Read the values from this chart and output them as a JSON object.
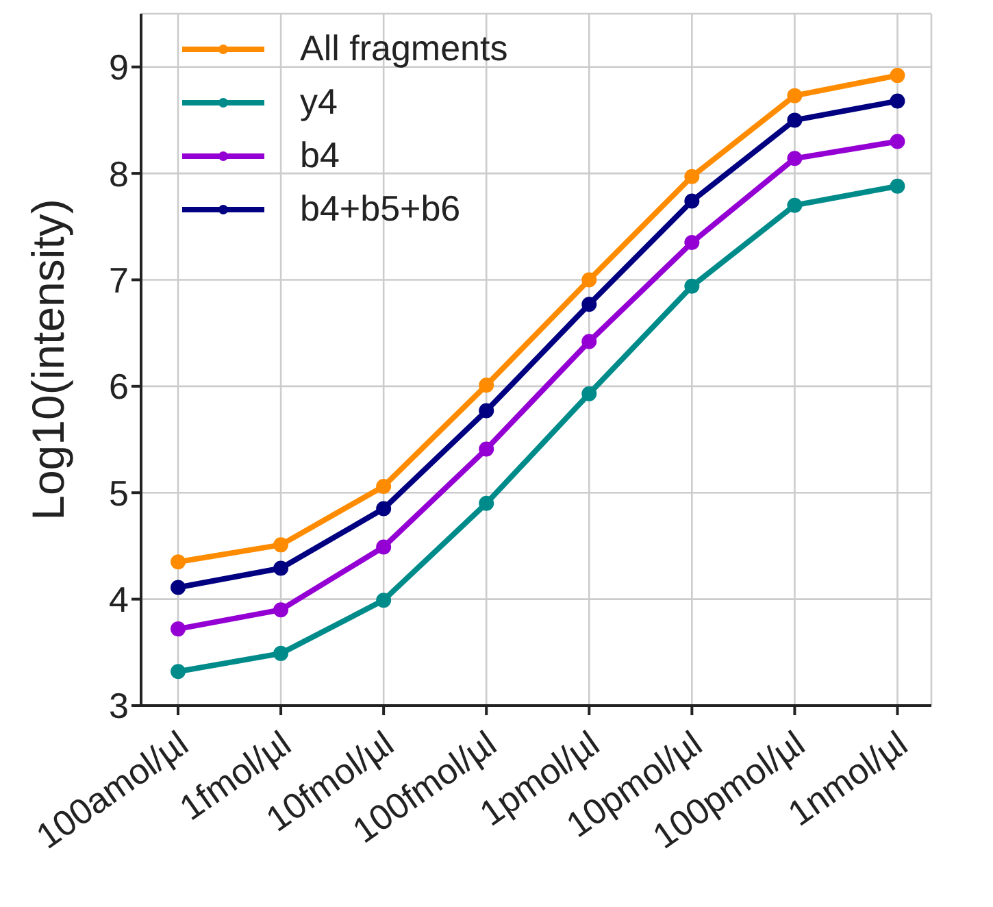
{
  "chart_data": {
    "type": "line",
    "ylabel": "Log10(intensity)",
    "categories": [
      "100amol/µl",
      "1fmol/µl",
      "10fmol/µl",
      "100fmol/µl",
      "1pmol/µl",
      "10pmol/µl",
      "100pmol/µl",
      "1nmol/µl"
    ],
    "series": [
      {
        "name": "All fragments",
        "color": "#ff8c00",
        "values": [
          4.35,
          4.51,
          5.06,
          6.01,
          7.0,
          7.97,
          8.73,
          8.92
        ]
      },
      {
        "name": "y4",
        "color": "#008b8b",
        "values": [
          3.32,
          3.49,
          3.99,
          4.9,
          5.93,
          6.94,
          7.7,
          7.88
        ]
      },
      {
        "name": "b4",
        "color": "#9400d3",
        "values": [
          3.72,
          3.9,
          4.49,
          5.41,
          6.42,
          7.35,
          8.14,
          8.3
        ]
      },
      {
        "name": "b4+b5+b6",
        "color": "#000080",
        "values": [
          4.11,
          4.29,
          4.85,
          5.77,
          6.77,
          7.74,
          8.5,
          8.68
        ]
      }
    ],
    "ylim": [
      3,
      9.5
    ],
    "yticks": [
      3,
      4,
      5,
      6,
      7,
      8,
      9
    ],
    "grid": true,
    "legend": "top left",
    "marker": "circle",
    "line_style": "solid"
  }
}
